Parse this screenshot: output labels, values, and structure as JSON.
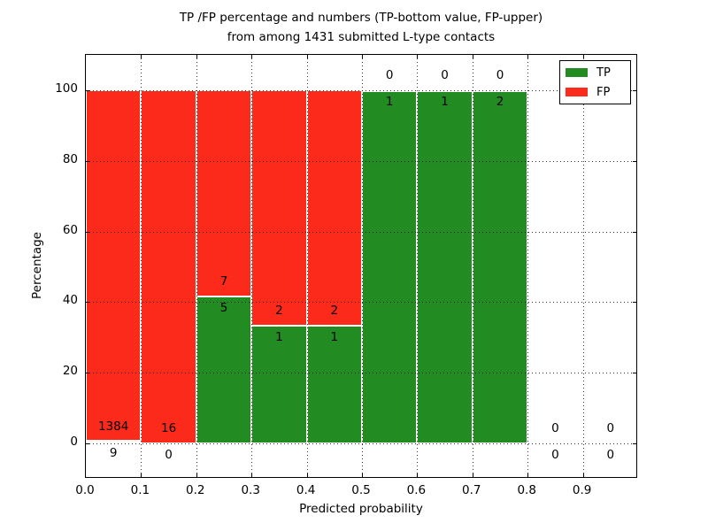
{
  "chart_data": {
    "type": "bar",
    "title_line1": "TP /FP percentage and numbers (TP-bottom value, FP-upper)",
    "title_line2": "from among 1431 submitted L-type contacts",
    "xlabel": "Predicted probability",
    "ylabel": "Percentage",
    "xlim": [
      0.0,
      1.0
    ],
    "ylim": [
      -10,
      110
    ],
    "xticks": [
      0.0,
      0.1,
      0.2,
      0.3,
      0.4,
      0.5,
      0.6,
      0.7,
      0.8,
      0.9
    ],
    "xtick_labels": [
      "0.0",
      "0.1",
      "0.2",
      "0.3",
      "0.4",
      "0.5",
      "0.6",
      "0.7",
      "0.8",
      "0.9"
    ],
    "yticks": [
      0,
      20,
      40,
      60,
      80,
      100
    ],
    "ytick_labels": [
      "0",
      "20",
      "40",
      "60",
      "80",
      "100"
    ],
    "grid": "dotted",
    "legend_position": "upper right",
    "legend": [
      {
        "label": "TP",
        "color": "#228b22"
      },
      {
        "label": "FP",
        "color": "#fb2a1b"
      }
    ],
    "total_contacts": 1431,
    "bins": [
      {
        "range": [
          0.0,
          0.1
        ],
        "tp": 9,
        "fp": 1384
      },
      {
        "range": [
          0.1,
          0.2
        ],
        "tp": 0,
        "fp": 16
      },
      {
        "range": [
          0.2,
          0.3
        ],
        "tp": 5,
        "fp": 7
      },
      {
        "range": [
          0.3,
          0.4
        ],
        "tp": 1,
        "fp": 2
      },
      {
        "range": [
          0.4,
          0.5
        ],
        "tp": 1,
        "fp": 2
      },
      {
        "range": [
          0.5,
          0.6
        ],
        "tp": 1,
        "fp": 0
      },
      {
        "range": [
          0.6,
          0.7
        ],
        "tp": 1,
        "fp": 0
      },
      {
        "range": [
          0.7,
          0.8
        ],
        "tp": 2,
        "fp": 0
      },
      {
        "range": [
          0.8,
          0.9
        ],
        "tp": 0,
        "fp": 0
      },
      {
        "range": [
          0.9,
          1.0
        ],
        "tp": 0,
        "fp": 0
      }
    ],
    "colors": {
      "tp": "#228b22",
      "fp": "#fb2a1b",
      "bar_edge": "#ffffff",
      "grid": "#000000",
      "background": "#ffffff"
    }
  }
}
